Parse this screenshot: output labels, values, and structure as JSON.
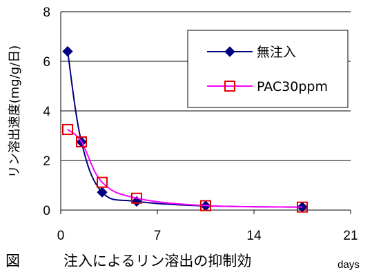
{
  "chart_data": {
    "type": "line",
    "ylabel": "リン溶出速度(mg/g/日)",
    "x_unit_label": "days",
    "xlim": [
      0,
      21
    ],
    "ylim": [
      0,
      8
    ],
    "x_ticks": [
      "0",
      "7",
      "14",
      "21"
    ],
    "y_ticks": [
      "0",
      "2",
      "4",
      "6",
      "8"
    ],
    "grid": true,
    "legend_position": "top-right",
    "series": [
      {
        "name": "無注入",
        "color": "#000080",
        "marker": "diamond",
        "x": [
          0.5,
          1.5,
          3,
          5.5,
          10.5,
          17.5
        ],
        "y": [
          6.4,
          2.75,
          0.72,
          0.35,
          0.17,
          0.12
        ]
      },
      {
        "name": "PAC30ppm",
        "color": "#ff00ff",
        "marker_color": "#e00000",
        "marker": "square",
        "x": [
          0.5,
          1.5,
          3,
          5.5,
          10.5,
          17.5
        ],
        "y": [
          3.25,
          2.75,
          1.12,
          0.48,
          0.18,
          0.12
        ]
      }
    ]
  },
  "caption": "図　　　注入によるリン溶出の抑制効"
}
